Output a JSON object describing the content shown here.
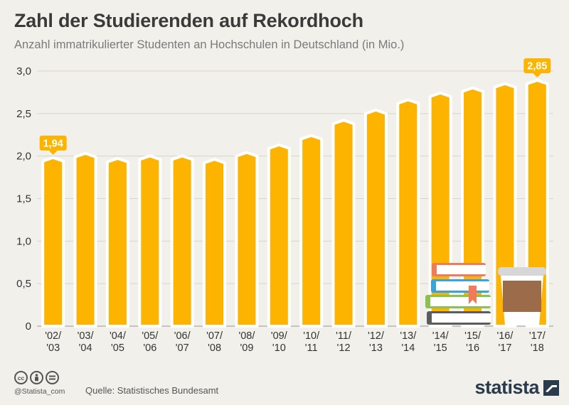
{
  "header": {
    "title": "Zahl der Studierenden auf Rekordhoch",
    "subtitle": "Anzahl immatrikulierter Studenten an Hochschulen in Deutschland (in Mio.)"
  },
  "footer": {
    "source": "Quelle: Statistisches Bundesamt",
    "handle": "@Statista_com",
    "brand": "statista",
    "license_icons": [
      "cc-icon",
      "by-icon",
      "nd-icon"
    ]
  },
  "colors": {
    "bar": "#fcb400",
    "bar_outline": "#ffffff",
    "grid": "#d6d4cc",
    "text": "#333333",
    "label_bg": "#fcb400"
  },
  "illustration": [
    "books-icon",
    "coffee-cup-icon"
  ],
  "chart_data": {
    "type": "bar",
    "categories": [
      "'02/\n'03",
      "'03/\n'04",
      "'04/\n'05",
      "'05/\n'06",
      "'06/\n'07",
      "'07/\n'08",
      "'08/\n'09",
      "'09/\n'10",
      "'10/\n'11",
      "'11/\n'12",
      "'12/\n'13",
      "'13/\n'14",
      "'14/\n'15",
      "'15/\n'16",
      "'16/\n'17",
      "'17/\n'18"
    ],
    "values": [
      1.94,
      1.99,
      1.93,
      1.96,
      1.96,
      1.92,
      2.0,
      2.09,
      2.2,
      2.38,
      2.5,
      2.62,
      2.7,
      2.76,
      2.81,
      2.85
    ],
    "data_labels": [
      {
        "index": 0,
        "text": "1,94"
      },
      {
        "index": 15,
        "text": "2,85"
      }
    ],
    "y_ticks": [
      "0",
      "0,5",
      "1,0",
      "1,5",
      "2,0",
      "2,5",
      "3,0"
    ],
    "ylim": [
      0,
      3.0
    ],
    "grid": true,
    "legend": "none",
    "title": "Zahl der Studierenden auf Rekordhoch",
    "xlabel": "",
    "ylabel": ""
  }
}
